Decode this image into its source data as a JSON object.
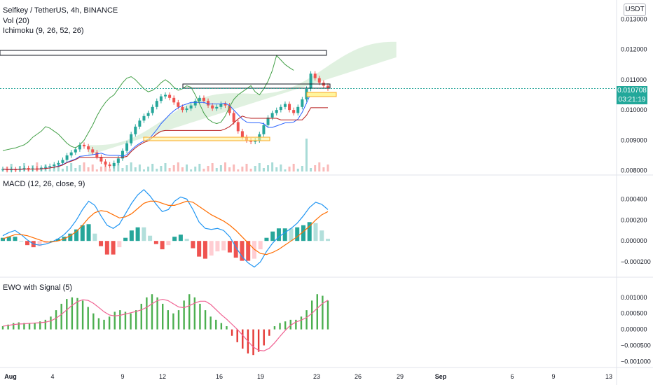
{
  "header": {
    "title": "Selfkey / TetherUS, 4h, BINANCE",
    "vol_label": "Vol (20)",
    "ichimoku_label": "Ichimoku (9, 26, 52, 26)",
    "currency_button": "USDT"
  },
  "price_box": {
    "price": "0.010708",
    "countdown": "03:21:19"
  },
  "colors": {
    "up": "#26a69a",
    "down": "#ef5350",
    "tenkan": "#2962ff",
    "kijun": "#b71c1c",
    "lagging": "#43a047",
    "cloud_green": "#a5d6a7",
    "cloud_red": "#f8bbd0",
    "macd": "#2196f3",
    "signal": "#ff6d00",
    "ewo_pos": "#4caf50",
    "ewo_neg": "#e53935",
    "ewo_signal": "#f06292"
  },
  "x_axis": {
    "labels": [
      "Aug",
      "4",
      "9",
      "12",
      "16",
      "19",
      "23",
      "26",
      "29",
      "Sep",
      "6",
      "9",
      "13"
    ]
  },
  "chart_data": [
    {
      "type": "candlestick",
      "title": "Selfkey / TetherUS, 4h, BINANCE",
      "y_ticks": [
        "0.013000",
        "0.012000",
        "0.011000",
        "0.010000",
        "0.009000",
        "0.008000"
      ],
      "ylim": [
        0.0079,
        0.0134
      ],
      "last_price": 0.010708,
      "close_series": [
        0.00805,
        0.00802,
        0.00804,
        0.00803,
        0.00806,
        0.00808,
        0.00805,
        0.00807,
        0.00806,
        0.00809,
        0.00812,
        0.00815,
        0.0082,
        0.00825,
        0.00835,
        0.0085,
        0.0086,
        0.0087,
        0.00885,
        0.0088,
        0.0087,
        0.0086,
        0.00845,
        0.0083,
        0.0082,
        0.00815,
        0.00825,
        0.0084,
        0.00865,
        0.0089,
        0.0092,
        0.00945,
        0.00965,
        0.0098,
        0.0099,
        0.0101,
        0.0103,
        0.01045,
        0.0105,
        0.0104,
        0.01025,
        0.0101,
        0.01,
        0.01005,
        0.01015,
        0.0103,
        0.0104,
        0.0103,
        0.01015,
        0.01005,
        0.0101,
        0.0102,
        0.01015,
        0.0099,
        0.0096,
        0.0093,
        0.0091,
        0.009,
        0.00895,
        0.009,
        0.0092,
        0.0095,
        0.00975,
        0.0099,
        0.01,
        0.0101,
        0.0102,
        0.01,
        0.0099,
        0.0101,
        0.01035,
        0.0107,
        0.0112,
        0.01105,
        0.0109,
        0.0108,
        0.01071
      ],
      "ichimoku": {
        "tenkan": "blue line",
        "kijun": "dark red line",
        "lagging": "green line",
        "cloud": "green/red"
      },
      "volume": "bars at bottom of price panel"
    },
    {
      "type": "macd_histogram",
      "title": "MACD (12, 26, close, 9)",
      "y_ticks": [
        "0.000400",
        "0.000200",
        "0.000000",
        "−0.000200"
      ],
      "ylim": [
        -0.00032,
        0.00055
      ],
      "series": [
        {
          "name": "MACD",
          "values": [
            5e-05,
            8e-05,
            0.0001,
            6e-05,
            1e-05,
            -3e-05,
            -4e-05,
            -3e-05,
            -1e-05,
            2e-05,
            6e-05,
            0.00012,
            0.0002,
            0.0003,
            0.00038,
            0.00034,
            0.00024,
            0.00015,
            0.00012,
            0.00016,
            0.00026,
            0.00036,
            0.00044,
            0.00049,
            0.00043,
            0.00035,
            0.00028,
            0.0003,
            0.00038,
            0.00042,
            0.0004,
            0.0003,
            0.00018,
            0.00012,
            0.00011,
            0.00012,
            0.0001,
            4e-05,
            -6e-05,
            -0.00015,
            -0.00021,
            -0.00025,
            -0.0002,
            -0.0001,
            -2e-05,
            4e-05,
            8e-05,
            0.00012,
            0.00017,
            0.00024,
            0.00032,
            0.00037,
            0.00035,
            0.0003
          ]
        },
        {
          "name": "Signal",
          "values": [
            2e-05,
            4e-05,
            6e-05,
            6e-05,
            5e-05,
            3e-05,
            1e-05,
            -1e-05,
            -1e-05,
            0.0,
            2e-05,
            5e-05,
            9e-05,
            0.00015,
            0.00022,
            0.00027,
            0.00029,
            0.00028,
            0.00025,
            0.00022,
            0.00023,
            0.00026,
            0.00031,
            0.00036,
            0.00038,
            0.00038,
            0.00036,
            0.00034,
            0.00034,
            0.00036,
            0.00038,
            0.00037,
            0.00033,
            0.00029,
            0.00025,
            0.00022,
            0.00019,
            0.00015,
            0.0001,
            4e-05,
            -2e-05,
            -8e-05,
            -0.00012,
            -0.00013,
            -0.00011,
            -8e-05,
            -4e-05,
            0.0,
            4e-05,
            9e-05,
            0.00014,
            0.0002,
            0.00025,
            0.00028
          ]
        }
      ]
    },
    {
      "type": "bar",
      "title": "EWO with Signal (5)",
      "y_ticks": [
        "0.001000",
        "0.000500",
        "0.000000",
        "−0.000500",
        "−0.001000"
      ],
      "ylim": [
        -0.00108,
        0.00128
      ],
      "series": [
        {
          "name": "EWO",
          "values": [
            0.0001,
            0.00015,
            0.0002,
            0.00022,
            0.0002,
            0.00018,
            0.0002,
            0.00025,
            0.0003,
            0.0004,
            0.0006,
            0.0008,
            0.00095,
            0.001,
            0.00098,
            0.0009,
            0.0007,
            0.0005,
            0.00035,
            0.0003,
            0.0004,
            0.00055,
            0.0006,
            0.00055,
            0.0005,
            0.0006,
            0.0008,
            0.001,
            0.0011,
            0.001,
            0.0008,
            0.0006,
            0.0005,
            0.0006,
            0.0009,
            0.0011,
            0.001,
            0.0008,
            0.0006,
            0.0004,
            0.0003,
            0.0002,
            0.0001,
            -0.0002,
            -0.0004,
            -0.0006,
            -0.00075,
            -0.0008,
            -0.0007,
            -0.0005,
            -0.0002,
            0.0001,
            0.0002,
            0.00025,
            0.0003,
            0.0003,
            0.0004,
            0.0006,
            0.0009,
            0.0011,
            0.00105,
            0.0009
          ]
        }
      ]
    }
  ]
}
